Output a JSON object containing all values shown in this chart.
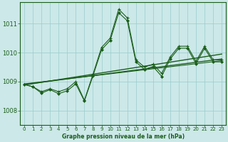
{
  "title": "Graphe pression niveau de la mer (hPa)",
  "bg_color": "#cce8e8",
  "grid_color": "#99cccc",
  "line_color": "#1a5e1a",
  "xlim": [
    -0.5,
    23.5
  ],
  "ylim": [
    1007.5,
    1011.75
  ],
  "yticks": [
    1008,
    1009,
    1010,
    1011
  ],
  "xticks": [
    0,
    1,
    2,
    3,
    4,
    5,
    6,
    7,
    8,
    9,
    10,
    11,
    12,
    13,
    14,
    15,
    16,
    17,
    18,
    19,
    20,
    21,
    22,
    23
  ],
  "series_plus_x": [
    0,
    1,
    2,
    3,
    4,
    5,
    6,
    7,
    8,
    9,
    10,
    11,
    12,
    13,
    14,
    15,
    16,
    17,
    18,
    19,
    20,
    21,
    22,
    23
  ],
  "series_plus_y": [
    1008.9,
    1008.82,
    1008.65,
    1008.75,
    1008.65,
    1008.75,
    1009.0,
    1008.35,
    1009.25,
    1010.18,
    1010.5,
    1011.5,
    1011.2,
    1009.75,
    1009.5,
    1009.6,
    1009.28,
    1009.85,
    1010.22,
    1010.22,
    1009.7,
    1010.22,
    1009.75,
    1009.75
  ],
  "series_diamond_x": [
    0,
    1,
    2,
    3,
    4,
    5,
    6,
    7,
    8,
    9,
    10,
    11,
    12,
    13,
    14,
    15,
    16,
    17,
    18,
    19,
    20,
    21,
    22,
    23
  ],
  "series_diamond_y": [
    1008.9,
    1008.82,
    1008.6,
    1008.72,
    1008.58,
    1008.68,
    1008.92,
    1008.33,
    1009.2,
    1010.1,
    1010.42,
    1011.38,
    1011.1,
    1009.68,
    1009.42,
    1009.52,
    1009.18,
    1009.78,
    1010.15,
    1010.15,
    1009.62,
    1010.15,
    1009.68,
    1009.68
  ],
  "trend1_x": [
    0,
    23
  ],
  "trend1_y": [
    1008.88,
    1009.95
  ],
  "trend2_x": [
    0,
    23
  ],
  "trend2_y": [
    1008.9,
    1009.78
  ],
  "trend3_x": [
    0,
    23
  ],
  "trend3_y": [
    1008.92,
    1009.72
  ]
}
